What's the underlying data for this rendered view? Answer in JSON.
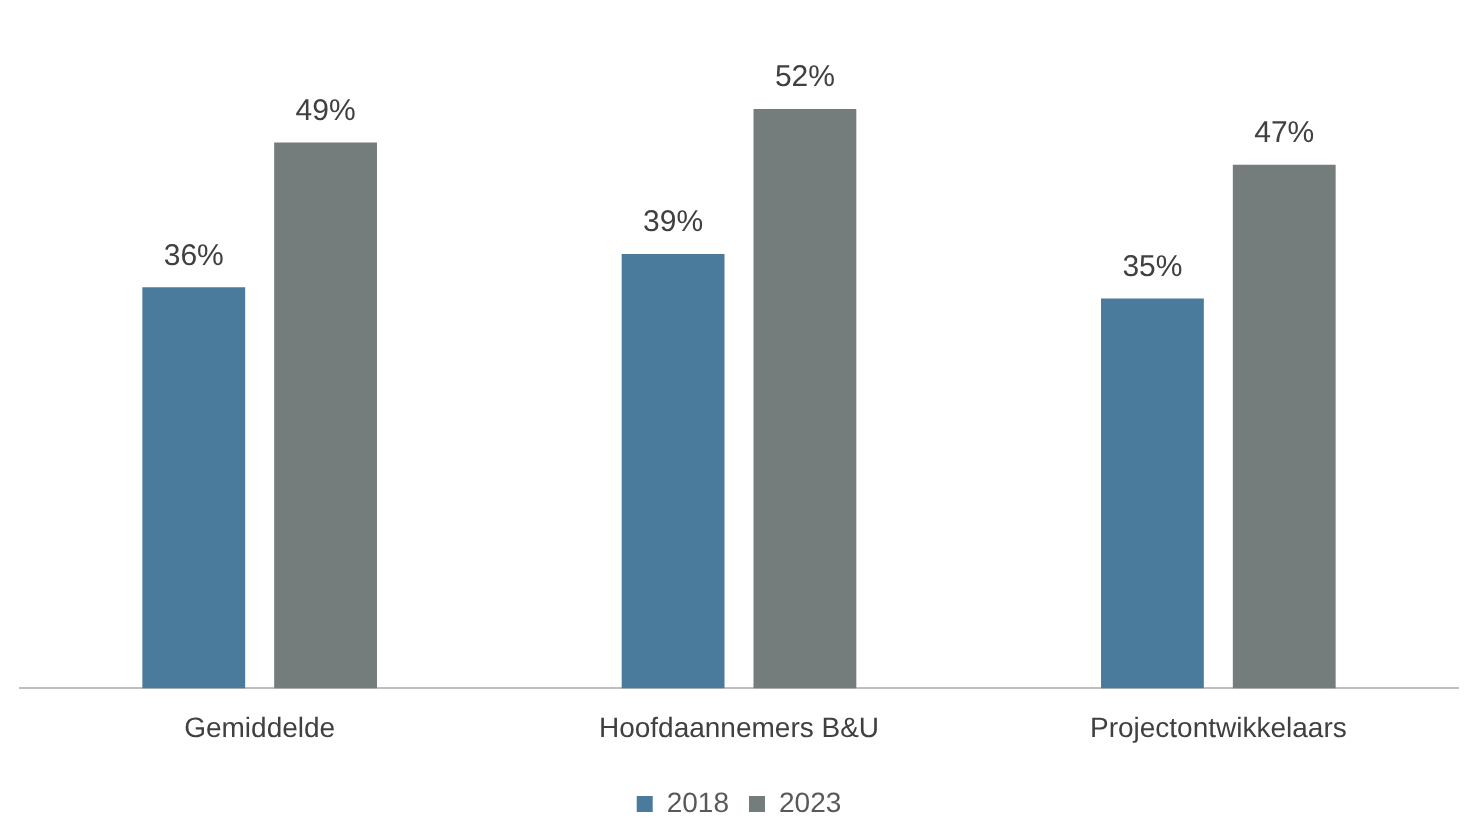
{
  "chart_data": {
    "type": "bar",
    "categories": [
      "Gemiddelde",
      "Hoofdaannemers B&U",
      "Projectontwikkelaars"
    ],
    "series": [
      {
        "name": "2018",
        "color": "#4a7b9d",
        "values": [
          36,
          39,
          35
        ],
        "value_labels": [
          "36%",
          "39%",
          "35%"
        ]
      },
      {
        "name": "2023",
        "color": "#747c7c",
        "values": [
          49,
          52,
          47
        ],
        "value_labels": [
          "49%",
          "52%",
          "47%"
        ]
      }
    ],
    "legend": "bottom",
    "grid": false
  }
}
